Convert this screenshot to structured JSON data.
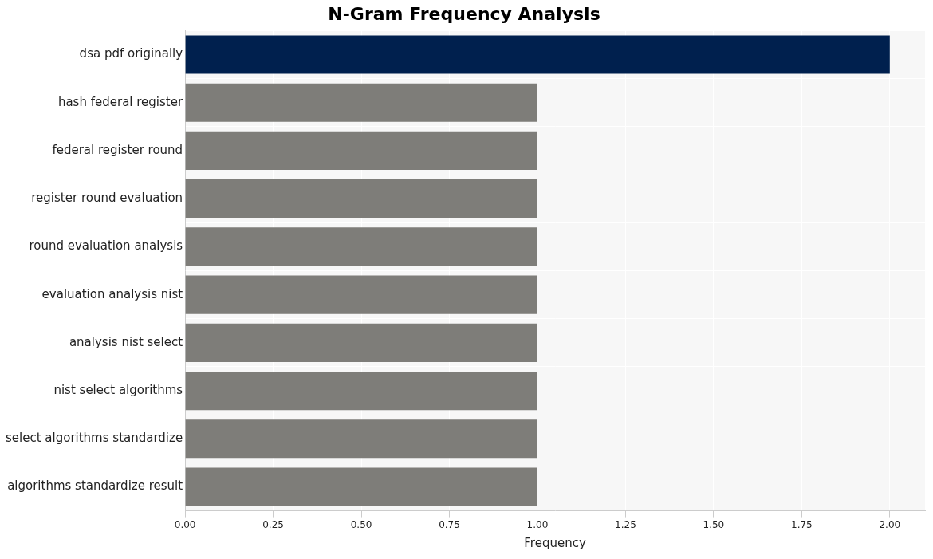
{
  "chart_data": {
    "type": "bar",
    "orientation": "horizontal",
    "title": "N-Gram Frequency Analysis",
    "x_label": "Frequency",
    "categories": [
      "dsa pdf originally",
      "hash federal register",
      "federal register round",
      "register round evaluation",
      "round evaluation analysis",
      "evaluation analysis nist",
      "analysis nist select",
      "nist select algorithms",
      "select algorithms standardize",
      "algorithms standardize result"
    ],
    "values": [
      2,
      1,
      1,
      1,
      1,
      1,
      1,
      1,
      1,
      1
    ],
    "colors": [
      "#00204e",
      "#7e7d79",
      "#7e7d79",
      "#7e7d79",
      "#7e7d79",
      "#7e7d79",
      "#7e7d79",
      "#7e7d79",
      "#7e7d79",
      "#7e7d79"
    ],
    "xlim": [
      0,
      2.1
    ],
    "xticks": [
      {
        "value": 0,
        "label": "0.00"
      },
      {
        "value": 0.25,
        "label": "0.25"
      },
      {
        "value": 0.5,
        "label": "0.50"
      },
      {
        "value": 0.75,
        "label": "0.75"
      },
      {
        "value": 1,
        "label": "1.00"
      },
      {
        "value": 1.25,
        "label": "1.25"
      },
      {
        "value": 1.5,
        "label": "1.50"
      },
      {
        "value": 1.75,
        "label": "1.75"
      },
      {
        "value": 2,
        "label": "2.00"
      }
    ],
    "grid": true
  }
}
